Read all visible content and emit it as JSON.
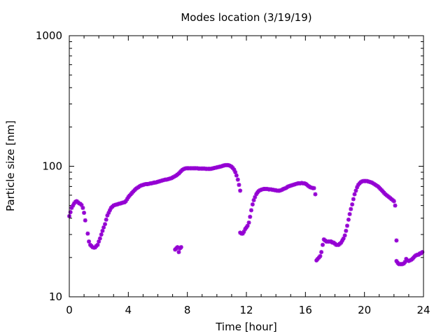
{
  "chart_data": {
    "type": "scatter",
    "title": "Modes location (3/19/19)",
    "xlabel": "Time [hour]",
    "ylabel": "Particle size [nm]",
    "xlim": [
      0,
      24
    ],
    "ylim": [
      10,
      1000
    ],
    "yscale": "log",
    "grid": false,
    "legend": "none",
    "xticks": [
      0,
      4,
      8,
      12,
      16,
      20,
      24
    ],
    "xtick_labels": [
      "0",
      "4",
      "8",
      "12",
      "16",
      "20",
      "24"
    ],
    "yticks": [
      10,
      100,
      1000
    ],
    "ytick_labels": [
      "10",
      "100",
      "1000"
    ],
    "marker_color": "#9400d3",
    "points": [
      [
        0.0,
        41.5
      ],
      [
        0.08,
        44.5
      ],
      [
        0.16,
        48
      ],
      [
        0.25,
        50
      ],
      [
        0.33,
        52
      ],
      [
        0.42,
        53.5
      ],
      [
        0.5,
        54
      ],
      [
        0.58,
        53
      ],
      [
        0.67,
        52
      ],
      [
        0.75,
        51.5
      ],
      [
        0.83,
        50.5
      ],
      [
        0.92,
        48
      ],
      [
        1.0,
        44
      ],
      [
        1.08,
        38.5
      ],
      [
        1.25,
        30.5
      ],
      [
        1.33,
        26.5
      ],
      [
        1.42,
        25
      ],
      [
        1.5,
        24.5
      ],
      [
        1.58,
        24
      ],
      [
        1.67,
        23.8
      ],
      [
        1.75,
        23.9
      ],
      [
        1.83,
        24.5
      ],
      [
        1.92,
        25
      ],
      [
        2.0,
        26.5
      ],
      [
        2.08,
        28
      ],
      [
        2.17,
        30
      ],
      [
        2.25,
        32
      ],
      [
        2.33,
        34
      ],
      [
        2.42,
        36
      ],
      [
        2.5,
        39
      ],
      [
        2.58,
        42
      ],
      [
        2.67,
        44
      ],
      [
        2.75,
        46
      ],
      [
        2.83,
        48
      ],
      [
        2.92,
        49
      ],
      [
        3.0,
        50
      ],
      [
        3.08,
        50.5
      ],
      [
        3.17,
        50.8
      ],
      [
        3.25,
        51
      ],
      [
        3.33,
        51.5
      ],
      [
        3.42,
        51.8
      ],
      [
        3.5,
        52
      ],
      [
        3.58,
        52.5
      ],
      [
        3.67,
        52.8
      ],
      [
        3.75,
        53
      ],
      [
        3.83,
        54
      ],
      [
        3.92,
        56
      ],
      [
        4.0,
        58
      ],
      [
        4.08,
        59.5
      ],
      [
        4.17,
        61
      ],
      [
        4.25,
        62.5
      ],
      [
        4.33,
        64
      ],
      [
        4.42,
        65.5
      ],
      [
        4.5,
        67
      ],
      [
        4.58,
        68
      ],
      [
        4.67,
        69
      ],
      [
        4.75,
        70
      ],
      [
        4.83,
        71
      ],
      [
        4.92,
        71.5
      ],
      [
        5.0,
        72
      ],
      [
        5.08,
        72.5
      ],
      [
        5.17,
        73
      ],
      [
        5.25,
        73
      ],
      [
        5.33,
        73
      ],
      [
        5.42,
        73.5
      ],
      [
        5.5,
        74
      ],
      [
        5.58,
        74
      ],
      [
        5.67,
        74.5
      ],
      [
        5.75,
        75
      ],
      [
        5.83,
        75
      ],
      [
        5.92,
        75.5
      ],
      [
        6.0,
        76
      ],
      [
        6.08,
        76.5
      ],
      [
        6.17,
        77
      ],
      [
        6.25,
        77.5
      ],
      [
        6.33,
        78
      ],
      [
        6.42,
        78.5
      ],
      [
        6.5,
        79
      ],
      [
        6.58,
        79
      ],
      [
        6.67,
        79.5
      ],
      [
        6.75,
        80
      ],
      [
        6.83,
        80.5
      ],
      [
        6.92,
        81
      ],
      [
        7.0,
        82
      ],
      [
        7.08,
        83
      ],
      [
        7.17,
        84
      ],
      [
        7.25,
        85
      ],
      [
        7.33,
        86.5
      ],
      [
        7.42,
        88
      ],
      [
        7.5,
        90
      ],
      [
        7.58,
        92
      ],
      [
        7.67,
        94
      ],
      [
        7.75,
        95
      ],
      [
        7.83,
        96
      ],
      [
        7.92,
        96.5
      ],
      [
        8.0,
        96.5
      ],
      [
        8.08,
        96.5
      ],
      [
        8.17,
        96.5
      ],
      [
        8.25,
        96.5
      ],
      [
        8.33,
        96.5
      ],
      [
        8.42,
        96.5
      ],
      [
        8.5,
        96.5
      ],
      [
        8.58,
        96.5
      ],
      [
        8.67,
        96.5
      ],
      [
        8.75,
        96
      ],
      [
        8.83,
        96
      ],
      [
        8.92,
        96
      ],
      [
        9.0,
        96
      ],
      [
        9.08,
        96
      ],
      [
        9.17,
        96
      ],
      [
        9.25,
        95.5
      ],
      [
        9.33,
        95.5
      ],
      [
        9.42,
        95.5
      ],
      [
        9.5,
        95.5
      ],
      [
        9.58,
        95.5
      ],
      [
        9.67,
        96
      ],
      [
        9.75,
        96.5
      ],
      [
        9.83,
        97
      ],
      [
        9.92,
        97.5
      ],
      [
        10.0,
        98
      ],
      [
        10.08,
        98.5
      ],
      [
        10.17,
        99
      ],
      [
        10.25,
        99.5
      ],
      [
        10.33,
        100
      ],
      [
        10.42,
        101
      ],
      [
        10.5,
        101.5
      ],
      [
        10.58,
        102
      ],
      [
        10.67,
        102
      ],
      [
        10.75,
        102
      ],
      [
        10.83,
        101.5
      ],
      [
        10.92,
        100.5
      ],
      [
        11.0,
        99
      ],
      [
        11.08,
        97
      ],
      [
        11.17,
        94
      ],
      [
        11.25,
        90
      ],
      [
        11.33,
        85
      ],
      [
        11.42,
        79
      ],
      [
        11.5,
        72
      ],
      [
        11.58,
        65
      ],
      [
        7.17,
        23
      ],
      [
        7.25,
        23.5
      ],
      [
        7.33,
        24
      ],
      [
        7.42,
        22
      ],
      [
        7.5,
        23.5
      ],
      [
        7.58,
        24
      ],
      [
        11.58,
        31
      ],
      [
        11.67,
        30.5
      ],
      [
        11.75,
        30.5
      ],
      [
        11.83,
        31.5
      ],
      [
        11.92,
        33
      ],
      [
        12.0,
        34
      ],
      [
        12.08,
        35
      ],
      [
        12.17,
        37
      ],
      [
        12.25,
        41
      ],
      [
        12.33,
        46
      ],
      [
        12.42,
        51
      ],
      [
        12.5,
        55
      ],
      [
        12.58,
        58
      ],
      [
        12.67,
        61
      ],
      [
        12.75,
        63
      ],
      [
        12.83,
        64.5
      ],
      [
        12.92,
        65.5
      ],
      [
        13.0,
        66
      ],
      [
        13.08,
        66.5
      ],
      [
        13.17,
        67
      ],
      [
        13.25,
        67
      ],
      [
        13.33,
        67
      ],
      [
        13.42,
        67
      ],
      [
        13.5,
        66.5
      ],
      [
        13.58,
        66.5
      ],
      [
        13.67,
        66.5
      ],
      [
        13.75,
        66
      ],
      [
        13.83,
        66
      ],
      [
        13.92,
        65.5
      ],
      [
        14.0,
        65.5
      ],
      [
        14.08,
        65
      ],
      [
        14.17,
        65
      ],
      [
        14.25,
        65
      ],
      [
        14.33,
        65.5
      ],
      [
        14.42,
        66
      ],
      [
        14.5,
        67
      ],
      [
        14.58,
        67.5
      ],
      [
        14.67,
        68
      ],
      [
        14.75,
        69
      ],
      [
        14.83,
        70
      ],
      [
        14.92,
        70.5
      ],
      [
        15.0,
        71
      ],
      [
        15.08,
        71.5
      ],
      [
        15.17,
        72
      ],
      [
        15.25,
        72.5
      ],
      [
        15.33,
        73
      ],
      [
        15.42,
        73.5
      ],
      [
        15.5,
        74
      ],
      [
        15.58,
        74
      ],
      [
        15.67,
        74
      ],
      [
        15.75,
        74.5
      ],
      [
        15.83,
        74
      ],
      [
        15.92,
        74
      ],
      [
        16.0,
        73.5
      ],
      [
        16.08,
        72.5
      ],
      [
        16.17,
        71
      ],
      [
        16.25,
        70
      ],
      [
        16.33,
        69
      ],
      [
        16.42,
        68.5
      ],
      [
        16.5,
        68
      ],
      [
        16.58,
        68
      ],
      [
        16.67,
        61
      ],
      [
        16.75,
        19
      ],
      [
        16.83,
        19.5
      ],
      [
        16.92,
        20
      ],
      [
        17.0,
        20.5
      ],
      [
        17.08,
        22
      ],
      [
        17.17,
        25
      ],
      [
        17.25,
        27.5
      ],
      [
        17.33,
        27
      ],
      [
        17.42,
        26.5
      ],
      [
        17.5,
        26.5
      ],
      [
        17.58,
        26.5
      ],
      [
        17.67,
        26.5
      ],
      [
        17.75,
        26.5
      ],
      [
        17.83,
        26
      ],
      [
        17.92,
        26
      ],
      [
        18.0,
        25.5
      ],
      [
        18.08,
        25
      ],
      [
        18.17,
        25
      ],
      [
        18.25,
        25
      ],
      [
        18.33,
        25.5
      ],
      [
        18.42,
        26
      ],
      [
        18.5,
        27
      ],
      [
        18.58,
        28
      ],
      [
        18.67,
        29.5
      ],
      [
        18.75,
        32
      ],
      [
        18.83,
        35
      ],
      [
        18.92,
        39
      ],
      [
        19.0,
        43
      ],
      [
        19.08,
        47
      ],
      [
        19.17,
        51
      ],
      [
        19.25,
        56
      ],
      [
        19.33,
        61
      ],
      [
        19.42,
        65
      ],
      [
        19.5,
        69
      ],
      [
        19.58,
        72
      ],
      [
        19.67,
        74
      ],
      [
        19.75,
        75.5
      ],
      [
        19.83,
        76.5
      ],
      [
        19.92,
        77
      ],
      [
        20.0,
        77
      ],
      [
        20.08,
        77
      ],
      [
        20.17,
        77
      ],
      [
        20.25,
        76.5
      ],
      [
        20.33,
        76
      ],
      [
        20.42,
        75.5
      ],
      [
        20.5,
        75
      ],
      [
        20.58,
        74
      ],
      [
        20.67,
        73
      ],
      [
        20.75,
        72
      ],
      [
        20.83,
        71
      ],
      [
        20.92,
        70
      ],
      [
        21.0,
        68.5
      ],
      [
        21.08,
        67
      ],
      [
        21.17,
        65.5
      ],
      [
        21.25,
        64
      ],
      [
        21.33,
        62.5
      ],
      [
        21.42,
        61
      ],
      [
        21.5,
        60
      ],
      [
        21.58,
        59
      ],
      [
        21.67,
        58
      ],
      [
        21.75,
        57
      ],
      [
        21.83,
        56
      ],
      [
        21.92,
        55
      ],
      [
        22.0,
        54
      ],
      [
        22.08,
        50
      ],
      [
        22.17,
        27
      ],
      [
        22.17,
        18.8
      ],
      [
        22.25,
        18.2
      ],
      [
        22.33,
        17.8
      ],
      [
        22.42,
        17.8
      ],
      [
        22.5,
        17.8
      ],
      [
        22.58,
        17.8
      ],
      [
        22.67,
        18
      ],
      [
        22.75,
        18.5
      ],
      [
        22.83,
        19.5
      ],
      [
        22.92,
        19
      ],
      [
        23.0,
        18.8
      ],
      [
        23.08,
        19
      ],
      [
        23.17,
        19.2
      ],
      [
        23.25,
        19.5
      ],
      [
        23.33,
        20
      ],
      [
        23.42,
        20.5
      ],
      [
        23.5,
        20.8
      ],
      [
        23.58,
        21
      ],
      [
        23.67,
        21
      ],
      [
        23.75,
        21.5
      ],
      [
        23.83,
        21.5
      ],
      [
        23.92,
        22
      ]
    ]
  }
}
